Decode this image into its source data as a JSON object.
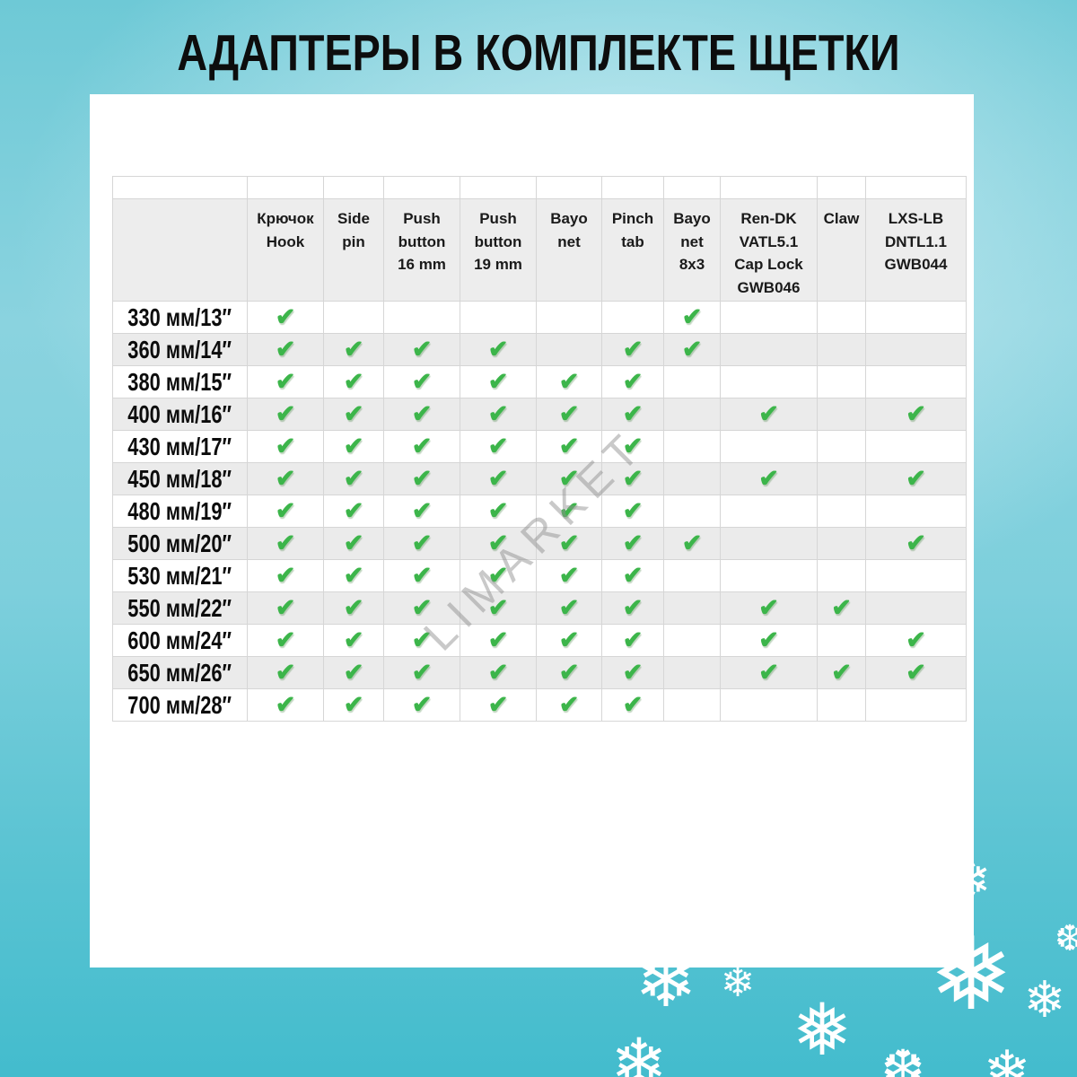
{
  "title": "АДАПТЕРЫ В КОМПЛЕКТЕ ЩЕТКИ",
  "watermark": "LIMARKET",
  "colors": {
    "check_green": "#3cb54a",
    "bg_teal_top": "#8ad3df",
    "bg_teal_bottom": "#43bccd",
    "header_bg": "#ededed",
    "row_alt_bg": "#ebebeb",
    "panel_bg": "#ffffff",
    "title_color": "#0d0d0d"
  },
  "icons": {
    "check": "✔",
    "snowflakes": [
      "❄",
      "❅",
      "❆"
    ]
  },
  "chart_data": {
    "type": "table",
    "title": "АДАПТЕРЫ В КОМПЛЕКТЕ ЩЕТКИ",
    "columns": [
      "Крючок\nHook",
      "Side\npin",
      "Push\nbutton\n16 mm",
      "Push\nbutton\n19 mm",
      "Bayo\nnet",
      "Pinch\ntab",
      "Bayo\nnet\n8x3",
      "Ren-DK\nVATL5.1\nCap Lock\nGWB046",
      "Claw",
      "LXS-LB\nDNTL1.1\nGWB044"
    ],
    "rows": [
      {
        "label": "330 мм/13″",
        "checks": [
          1,
          0,
          0,
          0,
          0,
          0,
          1,
          0,
          0,
          0
        ]
      },
      {
        "label": "360 мм/14″",
        "checks": [
          1,
          1,
          1,
          1,
          0,
          1,
          1,
          0,
          0,
          0
        ]
      },
      {
        "label": "380 мм/15″",
        "checks": [
          1,
          1,
          1,
          1,
          1,
          1,
          0,
          0,
          0,
          0
        ]
      },
      {
        "label": "400 мм/16″",
        "checks": [
          1,
          1,
          1,
          1,
          1,
          1,
          0,
          1,
          0,
          1
        ]
      },
      {
        "label": "430 мм/17″",
        "checks": [
          1,
          1,
          1,
          1,
          1,
          1,
          0,
          0,
          0,
          0
        ]
      },
      {
        "label": "450 мм/18″",
        "checks": [
          1,
          1,
          1,
          1,
          1,
          1,
          0,
          1,
          0,
          1
        ]
      },
      {
        "label": "480 мм/19″",
        "checks": [
          1,
          1,
          1,
          1,
          1,
          1,
          0,
          0,
          0,
          0
        ]
      },
      {
        "label": "500 мм/20″",
        "checks": [
          1,
          1,
          1,
          1,
          1,
          1,
          1,
          0,
          0,
          1
        ]
      },
      {
        "label": "530 мм/21″",
        "checks": [
          1,
          1,
          1,
          1,
          1,
          1,
          0,
          0,
          0,
          0
        ]
      },
      {
        "label": "550 мм/22″",
        "checks": [
          1,
          1,
          1,
          1,
          1,
          1,
          0,
          1,
          1,
          0
        ]
      },
      {
        "label": "600 мм/24″",
        "checks": [
          1,
          1,
          1,
          1,
          1,
          1,
          0,
          1,
          0,
          1
        ]
      },
      {
        "label": "650 мм/26″",
        "checks": [
          1,
          1,
          1,
          1,
          1,
          1,
          0,
          1,
          1,
          1
        ]
      },
      {
        "label": "700 мм/28″",
        "checks": [
          1,
          1,
          1,
          1,
          1,
          1,
          0,
          0,
          0,
          0
        ]
      }
    ]
  }
}
